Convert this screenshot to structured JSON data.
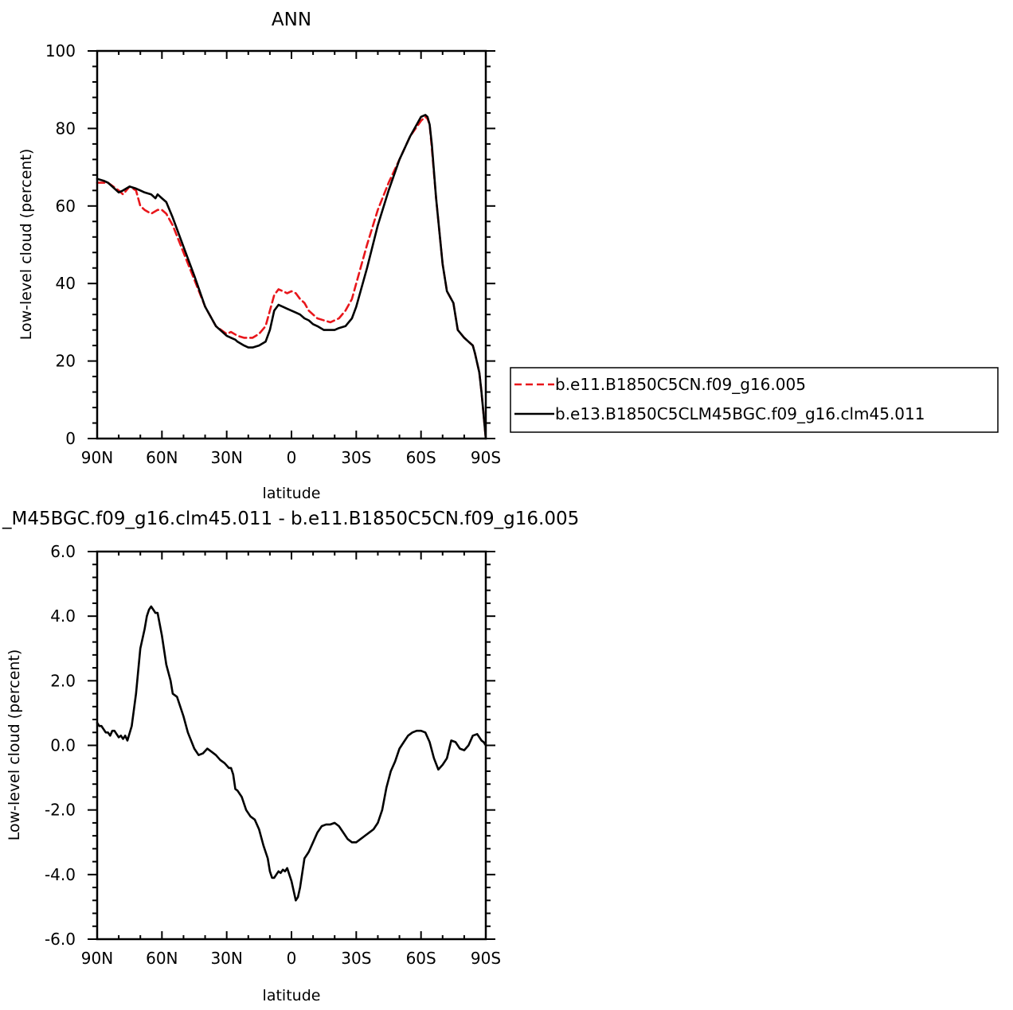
{
  "chart_data": [
    {
      "type": "line",
      "title": "ANN",
      "xlabel": "latitude",
      "ylabel": "Low-level cloud (percent)",
      "xlim": [
        90,
        -90
      ],
      "ylim": [
        0,
        100
      ],
      "xticks": [
        90,
        60,
        30,
        0,
        -30,
        -60,
        -90
      ],
      "xtick_labels": [
        "90N",
        "60N",
        "30N",
        "0",
        "30S",
        "60S",
        "90S"
      ],
      "yticks": [
        0,
        20,
        40,
        60,
        80,
        100
      ],
      "ytick_labels": [
        "0",
        "20",
        "40",
        "60",
        "80",
        "100"
      ],
      "legend_position": "right",
      "series": [
        {
          "name": "b.e11.B1850C5CN.f09_g16.005",
          "color": "#e8161b",
          "dash": "dashed",
          "x": [
            90,
            85,
            80,
            78,
            75,
            72,
            70,
            68,
            65,
            62,
            60,
            58,
            55,
            50,
            45,
            40,
            35,
            30,
            28,
            25,
            22,
            20,
            18,
            15,
            12,
            10,
            8,
            6,
            4,
            2,
            0,
            -2,
            -4,
            -6,
            -8,
            -10,
            -12,
            -15,
            -18,
            -20,
            -22,
            -25,
            -28,
            -30,
            -35,
            -40,
            -45,
            -50,
            -55,
            -60,
            -62,
            -63,
            -64,
            -65,
            -67,
            -70,
            -72,
            -75,
            -77,
            -80,
            -82,
            -84,
            -85,
            -87,
            -88,
            -89,
            -90
          ],
          "y": [
            66,
            66,
            64,
            63,
            65,
            64,
            60,
            59,
            58,
            59,
            59,
            58,
            55,
            48,
            41,
            34,
            29,
            27,
            27.5,
            26.5,
            26,
            26,
            26,
            27,
            29,
            33,
            37,
            38.5,
            38,
            37.5,
            38,
            37.5,
            36,
            35,
            33,
            32,
            31,
            30.5,
            30,
            30.5,
            31,
            33,
            36,
            40,
            50,
            59,
            66,
            72,
            78,
            82,
            83,
            82.5,
            81,
            75,
            62,
            45,
            38,
            35,
            28,
            26,
            25,
            24,
            22,
            17,
            12,
            6,
            0
          ]
        },
        {
          "name": "b.e13.B1850C5CLM45BGC.f09_g16.clm45.011",
          "color": "#000000",
          "dash": "solid",
          "x": [
            90,
            87,
            85,
            83,
            80,
            78,
            75,
            72,
            70,
            68,
            65,
            63,
            62,
            60,
            58,
            55,
            50,
            45,
            40,
            35,
            30,
            28,
            26,
            25,
            22,
            20,
            18,
            15,
            12,
            10,
            8,
            6,
            4,
            2,
            0,
            -2,
            -4,
            -6,
            -8,
            -10,
            -12,
            -15,
            -18,
            -20,
            -22,
            -25,
            -28,
            -30,
            -35,
            -40,
            -45,
            -50,
            -55,
            -60,
            -62,
            -63,
            -64,
            -65,
            -67,
            -70,
            -72,
            -75,
            -77,
            -80,
            -82,
            -84,
            -85,
            -87,
            -88,
            -89,
            -90
          ],
          "y": [
            67,
            66.5,
            66,
            65,
            63.5,
            64,
            65,
            64.5,
            64,
            63.5,
            63,
            62,
            63,
            62,
            61,
            57,
            49.5,
            42,
            34,
            29,
            26.5,
            26,
            25.5,
            25,
            24,
            23.5,
            23.5,
            24,
            25,
            28,
            33,
            34.5,
            34,
            33.5,
            33,
            32.5,
            32,
            31,
            30.5,
            29.5,
            29,
            28,
            28,
            28,
            28.5,
            29,
            31,
            34,
            44,
            55,
            64,
            72,
            78,
            83,
            83.5,
            83,
            81,
            76,
            62,
            45,
            38,
            35,
            28,
            26,
            25,
            24,
            22,
            17,
            12,
            6,
            0
          ]
        }
      ]
    },
    {
      "type": "line",
      "title": "_M45BGC.f09_g16.clm45.011 - b.e11.B1850C5CN.f09_g16.005",
      "xlabel": "latitude",
      "ylabel": "Low-level cloud (percent)",
      "xlim": [
        90,
        -90
      ],
      "ylim": [
        -6,
        6
      ],
      "xticks": [
        90,
        60,
        30,
        0,
        -30,
        -60,
        -90
      ],
      "xtick_labels": [
        "90N",
        "60N",
        "30N",
        "0",
        "30S",
        "60S",
        "90S"
      ],
      "yticks": [
        -6,
        -4,
        -2,
        0,
        2,
        4,
        6
      ],
      "ytick_labels": [
        "-6.0",
        "-4.0",
        "-2.0",
        "0.0",
        "2.0",
        "4.0",
        "6.0"
      ],
      "series": [
        {
          "name": "",
          "color": "#000000",
          "dash": "solid",
          "x": [
            90,
            89,
            88,
            86,
            85,
            84,
            83,
            82,
            81,
            80,
            79,
            78,
            77,
            76,
            74,
            72,
            70,
            68,
            67,
            66,
            65,
            64,
            63,
            62,
            60,
            58,
            56,
            55,
            53,
            50,
            48,
            45,
            43,
            41,
            39,
            37,
            35,
            33,
            31,
            29,
            28,
            27,
            26,
            25,
            23,
            21,
            19,
            17,
            15,
            13,
            11,
            10,
            9,
            8,
            7,
            6,
            5,
            4,
            3,
            2,
            1,
            0,
            -1,
            -2,
            -3,
            -4,
            -6,
            -7,
            -8,
            -10,
            -12,
            -14,
            -16,
            -18,
            -20,
            -22,
            -24,
            -26,
            -28,
            -30,
            -32,
            -34,
            -36,
            -38,
            -40,
            -42,
            -44,
            -46,
            -48,
            -50,
            -52,
            -54,
            -56,
            -58,
            -60,
            -62,
            -64,
            -66,
            -68,
            -70,
            -72,
            -74,
            -76,
            -78,
            -80,
            -82,
            -84,
            -86,
            -88,
            -89,
            -90
          ],
          "y": [
            0.7,
            0.6,
            0.6,
            0.4,
            0.4,
            0.3,
            0.45,
            0.45,
            0.35,
            0.25,
            0.3,
            0.2,
            0.3,
            0.15,
            0.6,
            1.6,
            3.0,
            3.6,
            4.0,
            4.2,
            4.3,
            4.2,
            4.1,
            4.1,
            3.4,
            2.5,
            2.0,
            1.6,
            1.5,
            0.9,
            0.4,
            -0.1,
            -0.3,
            -0.25,
            -0.1,
            -0.2,
            -0.3,
            -0.45,
            -0.55,
            -0.7,
            -0.7,
            -0.9,
            -1.35,
            -1.4,
            -1.6,
            -2.0,
            -2.2,
            -2.3,
            -2.6,
            -3.1,
            -3.5,
            -3.9,
            -4.1,
            -4.1,
            -4.0,
            -3.9,
            -3.95,
            -3.85,
            -3.9,
            -3.8,
            -4.0,
            -4.2,
            -4.5,
            -4.8,
            -4.7,
            -4.4,
            -3.5,
            -3.4,
            -3.3,
            -3.0,
            -2.7,
            -2.5,
            -2.45,
            -2.45,
            -2.4,
            -2.5,
            -2.7,
            -2.9,
            -3.0,
            -3.0,
            -2.9,
            -2.8,
            -2.7,
            -2.6,
            -2.4,
            -2.0,
            -1.3,
            -0.8,
            -0.5,
            -0.1,
            0.1,
            0.3,
            0.4,
            0.45,
            0.45,
            0.4,
            0.1,
            -0.4,
            -0.75,
            -0.6,
            -0.4,
            0.15,
            0.1,
            -0.1,
            -0.15,
            0.0,
            0.3,
            0.35,
            0.15,
            0.1,
            0.0
          ]
        }
      ]
    }
  ]
}
